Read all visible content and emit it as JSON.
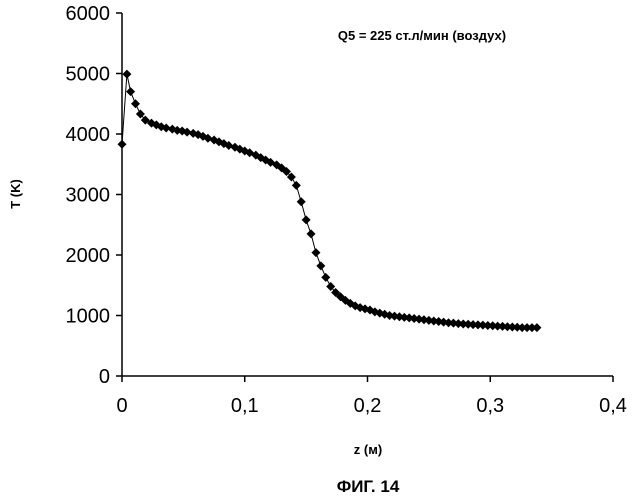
{
  "chart_data": {
    "type": "scatter",
    "xlabel": "z (м)",
    "ylabel": "T (K)",
    "annotation": "Q5 = 225 ст.л/мин (воздух)",
    "caption": "ФИГ. 14",
    "xlim": [
      0,
      0.4
    ],
    "ylim": [
      0,
      6000
    ],
    "x_ticks": [
      0,
      0.1,
      0.2,
      0.3,
      0.4
    ],
    "x_tick_labels": [
      "0",
      "0,1",
      "0,2",
      "0,3",
      "0,4"
    ],
    "y_ticks": [
      0,
      1000,
      2000,
      3000,
      4000,
      5000,
      6000
    ],
    "y_tick_labels": [
      "0",
      "1000",
      "2000",
      "3000",
      "4000",
      "5000",
      "6000"
    ],
    "grid": false,
    "legend": "none",
    "marker": "diamond",
    "color": "#000000",
    "series": [
      {
        "x": [
          0.0,
          0.004,
          0.007,
          0.011,
          0.015,
          0.019,
          0.024,
          0.028,
          0.032,
          0.036,
          0.041,
          0.045,
          0.049,
          0.053,
          0.058,
          0.062,
          0.066,
          0.07,
          0.075,
          0.079,
          0.083,
          0.087,
          0.092,
          0.096,
          0.1,
          0.104,
          0.109,
          0.113,
          0.117,
          0.121,
          0.126,
          0.13,
          0.134,
          0.138,
          0.142,
          0.146,
          0.15,
          0.154,
          0.158,
          0.162,
          0.166,
          0.17,
          0.174,
          0.178,
          0.182,
          0.186,
          0.19,
          0.194,
          0.198,
          0.202,
          0.206,
          0.21,
          0.214,
          0.218,
          0.222,
          0.226,
          0.23,
          0.234,
          0.238,
          0.242,
          0.246,
          0.25,
          0.254,
          0.258,
          0.262,
          0.266,
          0.27,
          0.274,
          0.278,
          0.282,
          0.286,
          0.29,
          0.294,
          0.298,
          0.302,
          0.306,
          0.31,
          0.314,
          0.318,
          0.322,
          0.326,
          0.33,
          0.334,
          0.338
        ],
        "y": [
          3830,
          4990,
          4700,
          4500,
          4330,
          4230,
          4180,
          4150,
          4120,
          4100,
          4080,
          4060,
          4050,
          4030,
          4010,
          3990,
          3960,
          3930,
          3900,
          3870,
          3840,
          3810,
          3780,
          3750,
          3720,
          3690,
          3650,
          3610,
          3570,
          3530,
          3490,
          3440,
          3380,
          3290,
          3150,
          2880,
          2580,
          2350,
          2040,
          1820,
          1630,
          1480,
          1380,
          1310,
          1250,
          1200,
          1160,
          1130,
          1110,
          1090,
          1060,
          1040,
          1020,
          1000,
          990,
          980,
          970,
          960,
          950,
          940,
          930,
          920,
          910,
          900,
          890,
          880,
          875,
          865,
          860,
          855,
          850,
          845,
          840,
          835,
          830,
          825,
          820,
          815,
          810,
          805,
          800,
          800,
          800,
          800
        ]
      }
    ]
  }
}
